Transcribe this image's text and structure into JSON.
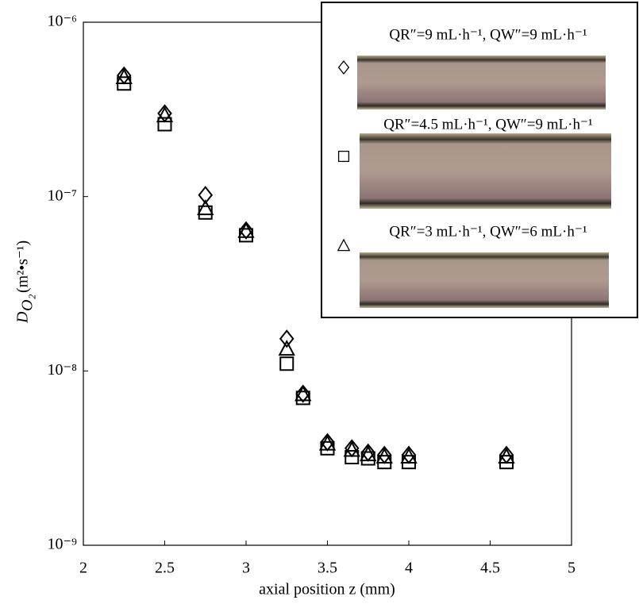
{
  "chart_data": {
    "type": "scatter",
    "x_label": "axial position z (mm)",
    "y_label_symbol": "D",
    "y_label_subscript": "O₂",
    "y_label_units": "(m²•s⁻¹)",
    "x": [
      2.25,
      2.5,
      2.75,
      3,
      3.25,
      3.35,
      3.5,
      3.65,
      3.75,
      3.85,
      4,
      4.6
    ],
    "series": [
      {
        "name": "QR″=9 mL·h⁻¹, QW″=9 mL·h⁻¹",
        "color": "#000000",
        "marker": "diamond",
        "values": [
          4.95e-07,
          3e-07,
          1.02e-07,
          6.4e-08,
          1.53e-08,
          7.4e-09,
          3.9e-09,
          3.6e-09,
          3.4e-09,
          3.3e-09,
          3.3e-09,
          3.3e-09
        ]
      },
      {
        "name": "QR″=4.5 mL·h⁻¹, QW″=9 mL·h⁻¹",
        "color": "#000000",
        "marker": "square",
        "values": [
          4.45e-07,
          2.6e-07,
          8.1e-08,
          6e-08,
          1.1e-08,
          7e-09,
          3.6e-09,
          3.2e-09,
          3.15e-09,
          3e-09,
          3e-09,
          3e-09
        ]
      },
      {
        "name": "QR″=3 mL·h⁻¹, QW″=6 mL·h⁻¹",
        "color": "#000000",
        "marker": "triangle",
        "values": [
          4.8e-07,
          2.9e-07,
          8.5e-08,
          6.3e-08,
          1.33e-08,
          7.3e-09,
          3.8e-09,
          3.5e-09,
          3.3e-09,
          3.2e-09,
          3.2e-09,
          3.2e-09
        ]
      }
    ],
    "xlim": [
      2,
      5
    ],
    "xticks": [
      2,
      2.5,
      3,
      3.5,
      4,
      4.5,
      5
    ],
    "ylim": [
      1e-09,
      1e-06
    ],
    "yticks": [
      {
        "value": 1e-09,
        "label": "10⁻⁹"
      },
      {
        "value": 1e-08,
        "label": "10⁻⁸"
      },
      {
        "value": 1e-07,
        "label": "10⁻⁷"
      },
      {
        "value": 1e-06,
        "label": "10⁻⁶"
      }
    ],
    "log_y": true,
    "grid": false,
    "legend_position": "upper right"
  }
}
